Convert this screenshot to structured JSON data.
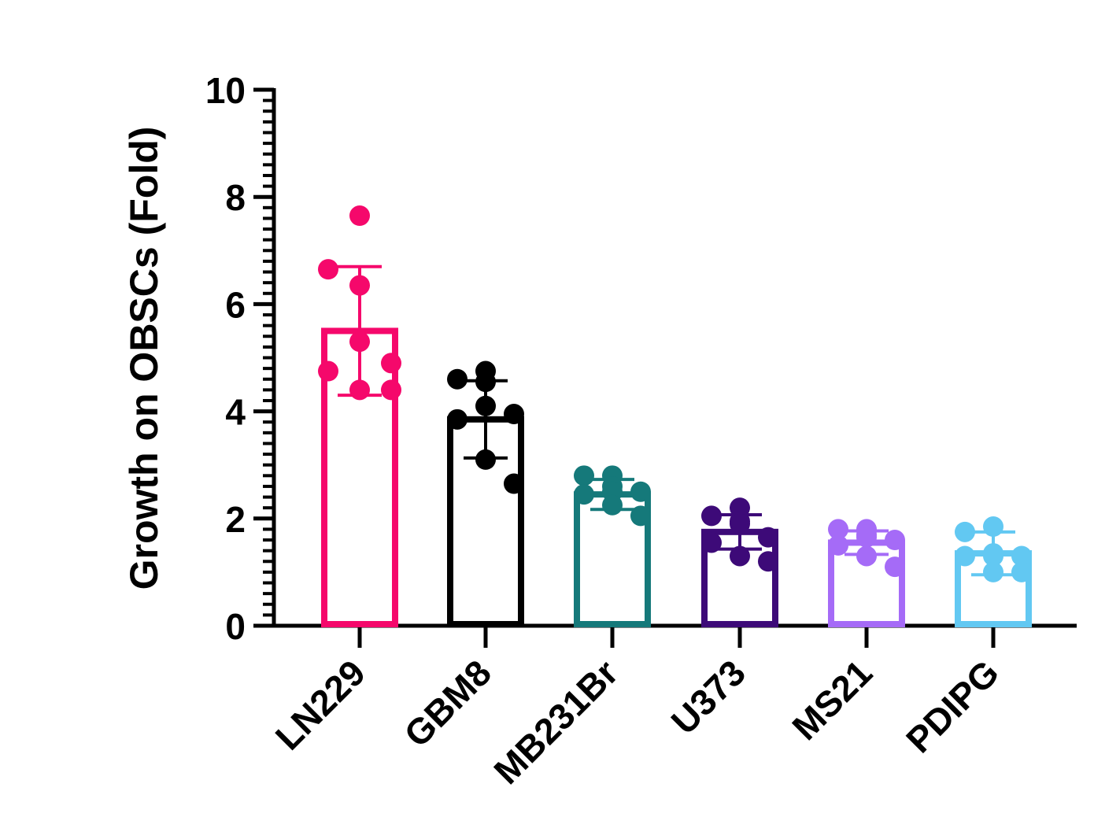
{
  "chart_data": {
    "type": "bar",
    "title": "",
    "xlabel": "",
    "ylabel": "Growth on OBSCs (Fold)",
    "ylim": [
      0,
      10
    ],
    "yticks": [
      "0",
      "2",
      "4",
      "6",
      "8",
      "10"
    ],
    "categories": [
      "LN229",
      "GBM8",
      "MB231Br",
      "U373",
      "MS21",
      "PDIPG"
    ],
    "values": [
      5.5,
      3.85,
      2.45,
      1.75,
      1.55,
      1.35
    ],
    "error": [
      1.2,
      0.72,
      0.28,
      0.32,
      0.22,
      0.4
    ],
    "colors": [
      "#f5086b",
      "#000000",
      "#15797a",
      "#3d0a78",
      "#a56bf7",
      "#62c8f2"
    ],
    "points": [
      [
        7.65,
        6.65,
        6.35,
        5.3,
        4.9,
        4.75,
        4.4,
        4.4
      ],
      [
        4.75,
        4.6,
        4.55,
        4.1,
        3.95,
        3.85,
        3.1,
        2.65
      ],
      [
        2.8,
        2.8,
        2.6,
        2.5,
        2.5,
        2.45,
        2.25,
        2.05
      ],
      [
        2.2,
        2.05,
        1.95,
        1.9,
        1.65,
        1.55,
        1.3,
        1.2
      ],
      [
        1.8,
        1.8,
        1.7,
        1.65,
        1.6,
        1.5,
        1.3,
        1.1
      ],
      [
        1.85,
        1.75,
        1.35,
        1.3,
        1.3,
        1.3,
        1.0,
        1.0
      ]
    ]
  }
}
